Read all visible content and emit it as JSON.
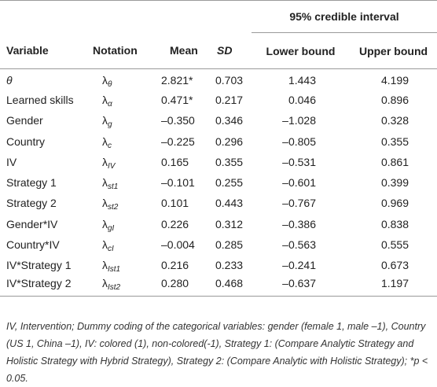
{
  "table": {
    "group_header": "95% credible interval",
    "columns": [
      "Variable",
      "Notation",
      "Mean",
      "SD",
      "Lower bound",
      "Upper bound"
    ],
    "rows": [
      [
        "θ",
        {
          "symbol": "λ",
          "sub": "θ"
        },
        "2.821*",
        "0.703",
        "1.443",
        "4.199"
      ],
      [
        "Learned skills",
        {
          "symbol": "λ",
          "sub": "α"
        },
        "0.471*",
        "0.217",
        "0.046",
        "0.896"
      ],
      [
        "Gender",
        {
          "symbol": "λ",
          "sub": "g"
        },
        "–0.350",
        "0.346",
        "–1.028",
        "0.328"
      ],
      [
        "Country",
        {
          "symbol": "λ",
          "sub": "c"
        },
        "–0.225",
        "0.296",
        "–0.805",
        "0.355"
      ],
      [
        "IV",
        {
          "symbol": "λ",
          "sub": "IV"
        },
        "0.165",
        "0.355",
        "–0.531",
        "0.861"
      ],
      [
        "Strategy 1",
        {
          "symbol": "λ",
          "sub": "st1"
        },
        "–0.101",
        "0.255",
        "–0.601",
        "0.399"
      ],
      [
        "Strategy 2",
        {
          "symbol": "λ",
          "sub": "st2"
        },
        "0.101",
        "0.443",
        "–0.767",
        "0.969"
      ],
      [
        "Gender*IV",
        {
          "symbol": "λ",
          "sub": "gI"
        },
        "0.226",
        "0.312",
        "–0.386",
        "0.838"
      ],
      [
        "Country*IV",
        {
          "symbol": "λ",
          "sub": "cI"
        },
        "–0.004",
        "0.285",
        "–0.563",
        "0.555"
      ],
      [
        "IV*Strategy 1",
        {
          "symbol": "λ",
          "sub": "Ist1"
        },
        "0.216",
        "0.233",
        "–0.241",
        "0.673"
      ],
      [
        "IV*Strategy 2",
        {
          "symbol": "λ",
          "sub": "Ist2"
        },
        "0.280",
        "0.468",
        "–0.637",
        "1.197"
      ]
    ],
    "footnote": "IV, Intervention; Dummy coding of the categorical variables: gender (female 1, male –1), Country (US 1, China –1), IV: colored (1), non-colored(-1), Strategy 1: (Compare Analytic Strategy and Holistic Strategy with Hybrid Strategy), Strategy 2: (Compare Analytic with Holistic Strategy); *p < 0.05."
  }
}
